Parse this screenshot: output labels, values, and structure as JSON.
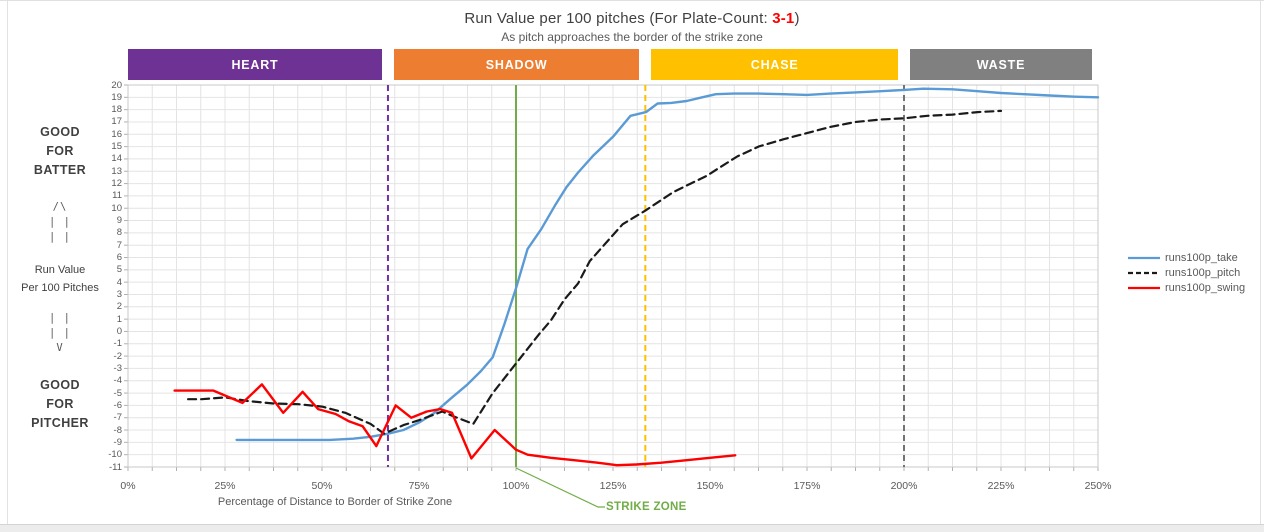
{
  "page": {
    "background": "#FFFFFF",
    "footer_strip_color": "#ECECEC",
    "frame_color": "#E2E2E2"
  },
  "chart_data": {
    "type": "line",
    "title": {
      "prefix": "Run Value per 100 pitches (For Plate-Count: ",
      "count": "3-1",
      "suffix": ")",
      "count_color": "#FF0000",
      "text_color": "#404040"
    },
    "subtitle": "As pitch approaches the border of the strike zone",
    "xlabel": "Percentage of Distance to Border of Strike Zone",
    "ylabel_lines": [
      "Run Value",
      "Per 100 Pitches"
    ],
    "good_for_batter": [
      "GOOD",
      "FOR",
      "BATTER"
    ],
    "good_for_pitcher": [
      "GOOD",
      "FOR",
      "PITCHER"
    ],
    "up_arrow": [
      "/\\",
      "| |",
      "| |"
    ],
    "down_arrow": [
      "| |",
      "| |",
      "V"
    ],
    "xlim": [
      0,
      250
    ],
    "ylim": [
      -11,
      20
    ],
    "y_tick_step": 1,
    "x_minor_step": 6.25,
    "grid": true,
    "grid_color": "#E4E4E4",
    "axis_color": "#C9C9C9",
    "tick_color": "#B0B0B0",
    "x_ticks": [
      {
        "v": 0,
        "label": "0%"
      },
      {
        "v": 25,
        "label": "25%"
      },
      {
        "v": 50,
        "label": "50%"
      },
      {
        "v": 75,
        "label": "75%"
      },
      {
        "v": 100,
        "label": "100%"
      },
      {
        "v": 125,
        "label": "125%"
      },
      {
        "v": 150,
        "label": "150%"
      },
      {
        "v": 175,
        "label": "175%"
      },
      {
        "v": 200,
        "label": "200%"
      },
      {
        "v": 225,
        "label": "225%"
      },
      {
        "v": 250,
        "label": "250%"
      }
    ],
    "zones": [
      {
        "label": "HEART",
        "color": "#6E3194",
        "from": 0,
        "to": 67
      },
      {
        "label": "SHADOW",
        "color": "#ED7D31",
        "from": 67,
        "to": 133.33
      },
      {
        "label": "CHASE",
        "color": "#FFC000",
        "from": 133.33,
        "to": 200
      },
      {
        "label": "WASTE",
        "color": "#808080",
        "from": 200,
        "to": 250
      }
    ],
    "vlines": [
      {
        "x": 67,
        "color": "#7030A0",
        "dashed": true,
        "name": "heart-shadow-boundary-line"
      },
      {
        "x": 100,
        "color": "#70AD47",
        "dashed": false,
        "name": "strike-zone-line"
      },
      {
        "x": 133.33,
        "color": "#FFC000",
        "dashed": true,
        "name": "shadow-chase-boundary-line"
      },
      {
        "x": 200,
        "color": "#757171",
        "dashed": true,
        "name": "chase-waste-boundary-line"
      }
    ],
    "strike_zone": {
      "label": "STRIKE ZONE",
      "color": "#70AD47"
    },
    "legend_position": "right",
    "series": [
      {
        "name": "runs100p_take",
        "color": "#5B9BD5",
        "dashed": false,
        "points": [
          [
            28,
            -8.8
          ],
          [
            34,
            -8.8
          ],
          [
            40,
            -8.8
          ],
          [
            46,
            -8.8
          ],
          [
            52,
            -8.8
          ],
          [
            58,
            -8.7
          ],
          [
            62.5,
            -8.55
          ],
          [
            67,
            -8.3
          ],
          [
            71,
            -8.0
          ],
          [
            75,
            -7.4
          ],
          [
            79,
            -6.6
          ],
          [
            83,
            -5.5
          ],
          [
            87.5,
            -4.3
          ],
          [
            91,
            -3.2
          ],
          [
            94,
            -2.1
          ],
          [
            97,
            0.6
          ],
          [
            100,
            3.5
          ],
          [
            103,
            6.7
          ],
          [
            106.5,
            8.3
          ],
          [
            110,
            10.2
          ],
          [
            113,
            11.7
          ],
          [
            116,
            12.9
          ],
          [
            120,
            14.3
          ],
          [
            125,
            15.8
          ],
          [
            129.5,
            17.5
          ],
          [
            133.5,
            17.8
          ],
          [
            136.5,
            18.5
          ],
          [
            140,
            18.55
          ],
          [
            144,
            18.7
          ],
          [
            148,
            19.0
          ],
          [
            151.5,
            19.25
          ],
          [
            156,
            19.3
          ],
          [
            162.5,
            19.3
          ],
          [
            169,
            19.25
          ],
          [
            175,
            19.2
          ],
          [
            181,
            19.3
          ],
          [
            187.5,
            19.4
          ],
          [
            194,
            19.5
          ],
          [
            200,
            19.6
          ],
          [
            205,
            19.7
          ],
          [
            212.5,
            19.65
          ],
          [
            219,
            19.5
          ],
          [
            225,
            19.35
          ],
          [
            231,
            19.25
          ],
          [
            237.5,
            19.15
          ],
          [
            244,
            19.05
          ],
          [
            250,
            19.0
          ]
        ]
      },
      {
        "name": "runs100p_pitch",
        "color": "#1A1A1A",
        "dashed": true,
        "points": [
          [
            15.5,
            -5.5
          ],
          [
            19,
            -5.5
          ],
          [
            25,
            -5.35
          ],
          [
            31,
            -5.65
          ],
          [
            37.5,
            -5.85
          ],
          [
            44,
            -5.9
          ],
          [
            50,
            -6.1
          ],
          [
            56,
            -6.6
          ],
          [
            62.5,
            -7.5
          ],
          [
            66,
            -8.3
          ],
          [
            71,
            -7.6
          ],
          [
            75,
            -7.2
          ],
          [
            81,
            -6.5
          ],
          [
            84,
            -6.9
          ],
          [
            89,
            -7.5
          ],
          [
            94,
            -5.0
          ],
          [
            100,
            -2.6
          ],
          [
            106,
            -0.2
          ],
          [
            109,
            0.9
          ],
          [
            112.5,
            2.6
          ],
          [
            116,
            3.9
          ],
          [
            119,
            5.7
          ],
          [
            123.5,
            7.3
          ],
          [
            127.5,
            8.7
          ],
          [
            133.3,
            9.8
          ],
          [
            140.5,
            11.3
          ],
          [
            145,
            12.0
          ],
          [
            149,
            12.6
          ],
          [
            153,
            13.4
          ],
          [
            157,
            14.2
          ],
          [
            162.5,
            15.0
          ],
          [
            169,
            15.6
          ],
          [
            175,
            16.1
          ],
          [
            181,
            16.6
          ],
          [
            187.5,
            17.0
          ],
          [
            194,
            17.2
          ],
          [
            200,
            17.3
          ],
          [
            206,
            17.5
          ],
          [
            212.5,
            17.6
          ],
          [
            219,
            17.8
          ],
          [
            225,
            17.9
          ]
        ]
      },
      {
        "name": "runs100p_swing",
        "color": "#FF0000",
        "dashed": false,
        "points": [
          [
            12,
            -4.8
          ],
          [
            17,
            -4.8
          ],
          [
            22,
            -4.8
          ],
          [
            29.5,
            -5.8
          ],
          [
            34.5,
            -4.3
          ],
          [
            40,
            -6.6
          ],
          [
            45,
            -4.9
          ],
          [
            49,
            -6.3
          ],
          [
            53.5,
            -6.7
          ],
          [
            57,
            -7.3
          ],
          [
            60.5,
            -7.7
          ],
          [
            64,
            -9.3
          ],
          [
            69,
            -6.0
          ],
          [
            73,
            -7.0
          ],
          [
            77,
            -6.5
          ],
          [
            80.5,
            -6.3
          ],
          [
            83.5,
            -6.6
          ],
          [
            88.5,
            -10.3
          ],
          [
            94.5,
            -8.0
          ],
          [
            100,
            -9.6
          ],
          [
            103,
            -10.0
          ],
          [
            109,
            -10.25
          ],
          [
            115,
            -10.45
          ],
          [
            121,
            -10.65
          ],
          [
            126,
            -10.85
          ],
          [
            131,
            -10.8
          ],
          [
            137.5,
            -10.65
          ],
          [
            144,
            -10.45
          ],
          [
            150,
            -10.25
          ],
          [
            156.5,
            -10.05
          ]
        ]
      }
    ]
  }
}
